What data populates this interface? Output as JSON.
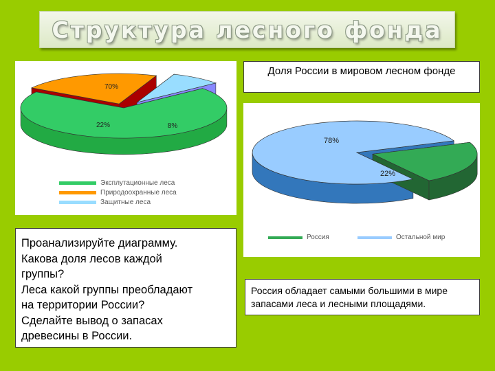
{
  "title": "Структура  лесного  фонда",
  "colors": {
    "background": "#99cc00",
    "green": "#33cc66",
    "orange": "#ff9900",
    "light_blue": "#99ddff",
    "sky_blue": "#88bbee",
    "dark_green": "#22aa44"
  },
  "question": {
    "lines": [
      "Проанализируйте  диаграмму.",
      "Какова  доля  лесов  каждой",
      "группы?",
      "Леса  какой  группы  преобладают",
      "на  территории  России?",
      "Сделайте  вывод  о  запасах",
      "древесины  в  России."
    ]
  },
  "share_title": "Доля России в  мировом  лесном фонде",
  "conclusion": "Россия обладает самыми большими в мире запасами леса и лесными площадями.",
  "chart_data": [
    {
      "type": "pie",
      "title": "",
      "categories": [
        "Эксплутационные леса",
        "Природоохранные леса",
        "Защитные леса"
      ],
      "values": [
        70,
        22,
        8
      ],
      "labels": [
        "70%",
        "22%",
        "8%"
      ],
      "colors": [
        "#33cc66",
        "#ff9900",
        "#99ddff"
      ],
      "side_colors": [
        "#22aa44",
        "#aa0000",
        "#8888ff"
      ],
      "legend": "bottom"
    },
    {
      "type": "pie",
      "title": "",
      "categories": [
        "Россия",
        "Остальной мир"
      ],
      "values": [
        22,
        78
      ],
      "labels": [
        "22%",
        "78%"
      ],
      "colors": [
        "#33aa55",
        "#99ccff"
      ],
      "side_colors": [
        "#226633",
        "#3377bb"
      ],
      "legend": "bottom"
    }
  ]
}
